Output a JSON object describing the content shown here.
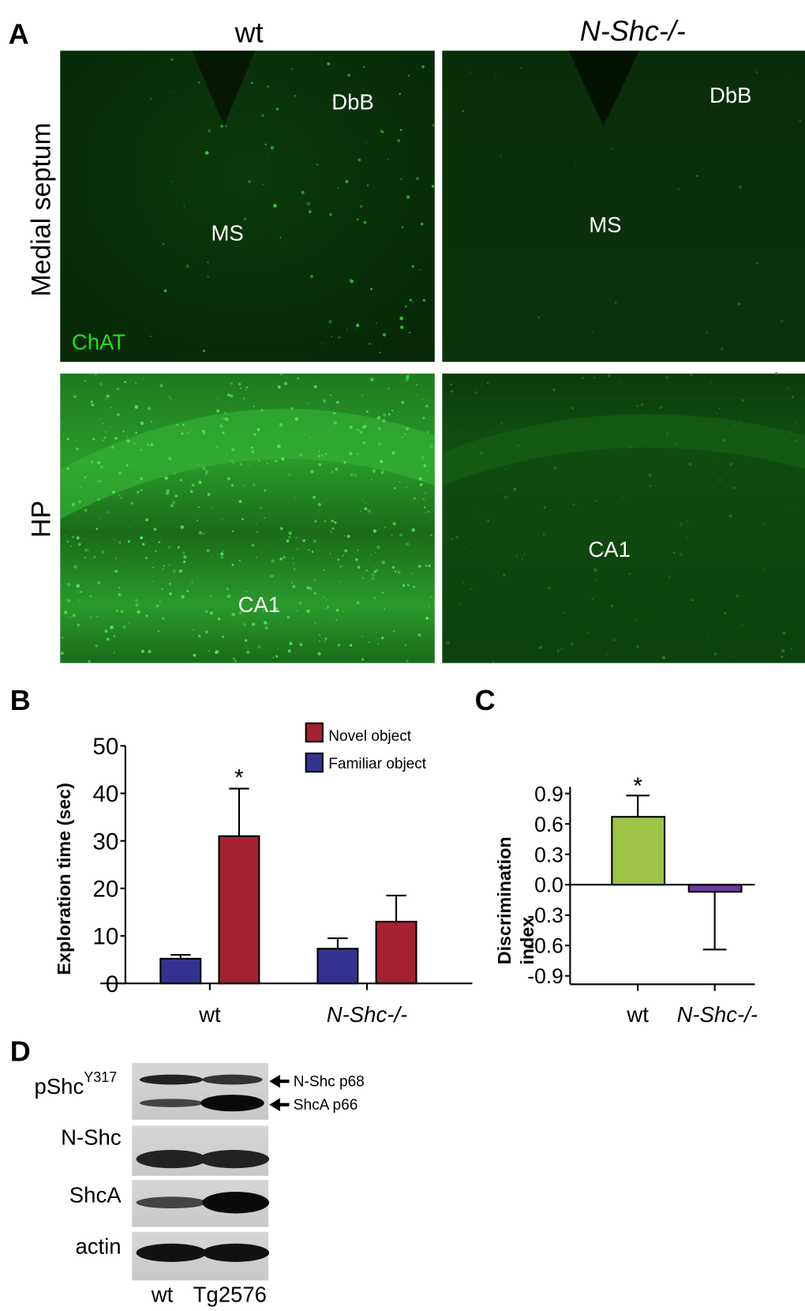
{
  "panel_a": {
    "label": "A",
    "col_headers": [
      "wt",
      "N-Shc-/-"
    ],
    "row_headers": [
      "Medial septum",
      "HP"
    ],
    "stain_label": "ChAT",
    "stain_color": "#22dd22",
    "image_labels": {
      "top_left": [
        "DbB",
        "MS"
      ],
      "top_right": [
        "DbB",
        "MS"
      ],
      "bottom_left": [
        "CA1"
      ],
      "bottom_right": [
        "CA1"
      ]
    }
  },
  "chart_data": [
    {
      "panel_label": "B",
      "type": "bar",
      "categories": [
        "wt",
        "N-Shc-/-"
      ],
      "series": [
        {
          "name": "Familiar object",
          "color": "#33338f",
          "values": [
            5.2,
            7.3
          ],
          "error_upper": [
            6.0,
            9.5
          ]
        },
        {
          "name": "Novel object",
          "color": "#a32131",
          "values": [
            31.0,
            13.0
          ],
          "error_upper": [
            41.0,
            18.5
          ]
        }
      ],
      "ylabel": "Exploration time (sec)",
      "ylim": [
        0,
        50
      ],
      "yticks": [
        "0",
        "10",
        "20",
        "30",
        "40",
        "50"
      ],
      "annotations": [
        {
          "text": "*",
          "category": "wt",
          "series": "Novel object"
        }
      ],
      "legend": [
        "Novel object",
        "Familiar object"
      ],
      "legend_position": "top-right",
      "grid": false
    },
    {
      "panel_label": "C",
      "type": "bar",
      "categories": [
        "wt",
        "N-Shc-/-"
      ],
      "values": [
        0.67,
        -0.07
      ],
      "error_bar_end": [
        0.88,
        -0.64
      ],
      "colors": [
        "#9dc347",
        "#6a3aa0"
      ],
      "ylabel": [
        "Discrimination",
        "index"
      ],
      "ylim": [
        -0.9,
        0.9
      ],
      "yticks": [
        "0.9",
        "0.6",
        "0.3",
        "0.0",
        "-0.3",
        "-0.6",
        "-0.9"
      ],
      "annotations": [
        {
          "text": "*",
          "category": "wt"
        }
      ],
      "grid": false
    }
  ],
  "panel_d": {
    "label": "D",
    "rows": [
      "pShc",
      "N-Shc",
      "ShcA",
      "actin"
    ],
    "row0_superscript": "Y317",
    "lanes": [
      "wt",
      "Tg2576"
    ],
    "arrows": [
      "N-Shc p68",
      "ShcA p66"
    ]
  }
}
